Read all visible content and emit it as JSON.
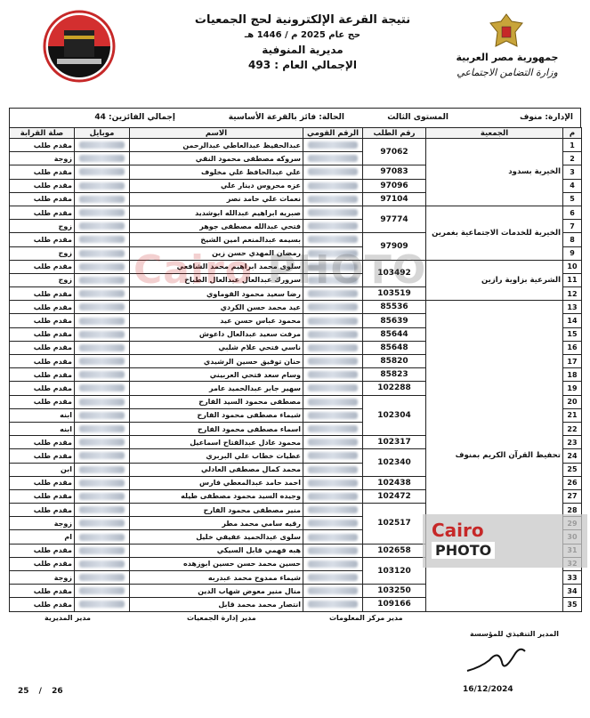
{
  "header": {
    "title": "نتيجة القرعة الإلكترونية لحج الجمعيات",
    "year": "حج عام 2025 م / 1446 هـ",
    "directorate": "مديرية المنوفية",
    "total": "الإجمالي العام : 493",
    "country": "جمهورية مصر العربية",
    "ministry": "وزارة التضامن الاجتماعي"
  },
  "info": {
    "administration": "الإدارة: منوف",
    "level": "المستوى الثالث",
    "status": "الحالة: فائز بالقرعة الأساسية",
    "winners": "إجمالي الفائزين: 44"
  },
  "table": {
    "columns": [
      "م",
      "الجمعية",
      "رقم الطلب",
      "الرقم القومي",
      "الاسم",
      "موبايل",
      "صلة القرابة"
    ],
    "groups": [
      {
        "association": "الخيرية بسدود",
        "requests": [
          {
            "number": "97062",
            "members": [
              {
                "row": "1",
                "name": "عبدالحفيظ عبدالعاطي عبدالرحمن",
                "relation": "مقدم طلب"
              },
              {
                "row": "2",
                "name": "سروكه مصطفى محمود النقي",
                "relation": "زوجة"
              }
            ]
          },
          {
            "number": "97083",
            "members": [
              {
                "row": "3",
                "name": "علي عبدالحافظ علي مخلوف",
                "relation": "مقدم طلب"
              }
            ]
          },
          {
            "number": "97096",
            "members": [
              {
                "row": "4",
                "name": "عزه محروس دينار علي",
                "relation": "مقدم طلب"
              }
            ]
          },
          {
            "number": "97104",
            "members": [
              {
                "row": "5",
                "name": "نعمات علي حامد نصر",
                "relation": "مقدم طلب"
              }
            ]
          }
        ]
      },
      {
        "association": "الخيرية للخدمات الاجتماعية بغمرين",
        "requests": [
          {
            "number": "97774",
            "members": [
              {
                "row": "6",
                "name": "صبريه ابراهيم عبدالله ابوشديد",
                "relation": "مقدم طلب"
              },
              {
                "row": "7",
                "name": "فتحي عبدالله مصطفى جوهر",
                "relation": "زوج"
              }
            ]
          },
          {
            "number": "97909",
            "members": [
              {
                "row": "8",
                "name": "بسيمه عبدالمنعم امين الشيخ",
                "relation": "مقدم طلب"
              },
              {
                "row": "9",
                "name": "رمضان المهدي حسن زين",
                "relation": "زوج"
              }
            ]
          }
        ]
      },
      {
        "association": "الشرعية بزاوية رازين",
        "requests": [
          {
            "number": "103492",
            "members": [
              {
                "row": "10",
                "name": "سلوى محمد ابراهيم محمد الشافعي",
                "relation": "مقدم طلب"
              },
              {
                "row": "11",
                "name": "سرورك عبدالعال عبدالعال الطباخ",
                "relation": "زوج"
              }
            ]
          },
          {
            "number": "103519",
            "members": [
              {
                "row": "12",
                "name": "رضا سعيد محمود القوماوي",
                "relation": "مقدم طلب"
              }
            ]
          }
        ]
      },
      {
        "association": "تحفيظ القرآن الكريم بمنوف",
        "requests": [
          {
            "number": "85536",
            "members": [
              {
                "row": "13",
                "name": "عيد محمد حسن الكردي",
                "relation": "مقدم طلب"
              }
            ]
          },
          {
            "number": "85639",
            "members": [
              {
                "row": "14",
                "name": "محمود عباس حسن عيد",
                "relation": "مقدم طلب"
              }
            ]
          },
          {
            "number": "85644",
            "members": [
              {
                "row": "15",
                "name": "مرفت سعيد عبدالعال داعوش",
                "relation": "مقدم طلب"
              }
            ]
          },
          {
            "number": "85648",
            "members": [
              {
                "row": "16",
                "name": "ناسي فتحي علام شلبي",
                "relation": "مقدم طلب"
              }
            ]
          },
          {
            "number": "85820",
            "members": [
              {
                "row": "17",
                "name": "حنان توفيق حسين الرشيدي",
                "relation": "مقدم طلب"
              }
            ]
          },
          {
            "number": "85823",
            "members": [
              {
                "row": "18",
                "name": "وسام سعد فتحي العربيني",
                "relation": "مقدم طلب"
              }
            ]
          },
          {
            "number": "102288",
            "members": [
              {
                "row": "19",
                "name": "سهير جابر عبدالحميد عامر",
                "relation": "مقدم طلب"
              }
            ]
          },
          {
            "number": "102304",
            "members": [
              {
                "row": "20",
                "name": "مصطفى محمود السيد الفارح",
                "relation": "مقدم طلب"
              },
              {
                "row": "21",
                "name": "شيماء مصطفى محمود الفارح",
                "relation": "ابنه"
              },
              {
                "row": "22",
                "name": "اسماء مصطفى محمود الفارح",
                "relation": "ابنه"
              }
            ]
          },
          {
            "number": "102317",
            "members": [
              {
                "row": "23",
                "name": "محمود عادل عبدالفتاح اسماعيل",
                "relation": "مقدم طلب"
              }
            ]
          },
          {
            "number": "102340",
            "members": [
              {
                "row": "24",
                "name": "عطيات خطاب علي البربري",
                "relation": "مقدم طلب"
              },
              {
                "row": "25",
                "name": "محمد كمال مصطفى العادلي",
                "relation": "ابن"
              }
            ]
          },
          {
            "number": "102438",
            "members": [
              {
                "row": "26",
                "name": "احمد حامد عبدالمعطي فارس",
                "relation": "مقدم طلب"
              }
            ]
          },
          {
            "number": "102472",
            "members": [
              {
                "row": "27",
                "name": "وجيده السيد محمود مصطفى طيله",
                "relation": "مقدم طلب"
              }
            ]
          },
          {
            "number": "102517",
            "members": [
              {
                "row": "28",
                "name": "منير مصطفى محمود الفارح",
                "relation": "مقدم طلب"
              },
              {
                "row": "29",
                "name": "رقيه سامي محمد مطر",
                "relation": "زوجة"
              },
              {
                "row": "30",
                "name": "سلوى عبدالحميد عفيفي خليل",
                "relation": "ام"
              }
            ]
          },
          {
            "number": "102658",
            "members": [
              {
                "row": "31",
                "name": "هبه فهمي قابل السيكي",
                "relation": "مقدم طلب"
              }
            ]
          },
          {
            "number": "103120",
            "members": [
              {
                "row": "32",
                "name": "حسين محمد حسن حسين ابوزهده",
                "relation": "مقدم طلب"
              },
              {
                "row": "33",
                "name": "شيماء ممدوح محمد عبدربه",
                "relation": "زوجة"
              }
            ]
          },
          {
            "number": "103250",
            "members": [
              {
                "row": "34",
                "name": "منال منير معوض شهاب الدين",
                "relation": "مقدم طلب"
              }
            ]
          },
          {
            "number": "109166",
            "members": [
              {
                "row": "35",
                "name": "انتصار محمد محمد قابل",
                "relation": "مقدم طلب"
              }
            ]
          }
        ]
      }
    ]
  },
  "footer": {
    "signatures": [
      "مدير المديرية",
      "مدير إدارة الجمعيات",
      "مدير مركز المعلومات"
    ],
    "executive": "المدير التنفيذي للمؤسسة",
    "date": "16/12/2024",
    "page": "25 / 26"
  },
  "watermark": {
    "brand": "Cairo",
    "sub": "PHOTO"
  }
}
